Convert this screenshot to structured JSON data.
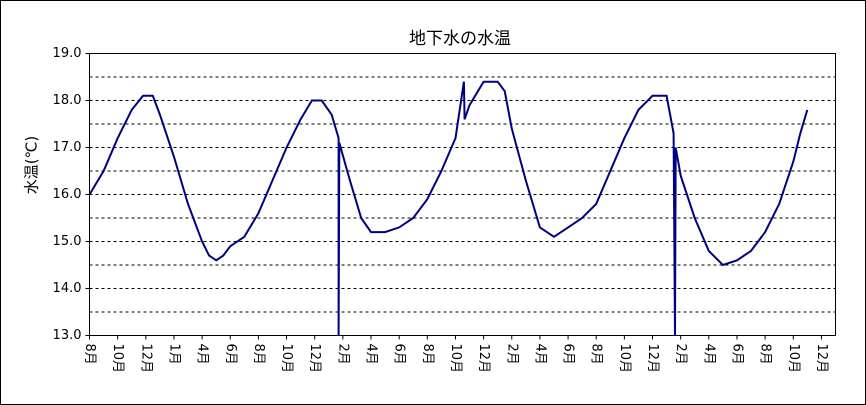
{
  "chart_data": {
    "type": "line",
    "title": "地下水の水温",
    "y_label": "水温(℃)",
    "x": [
      0,
      1,
      2,
      3,
      3.8,
      4.5,
      5,
      6,
      7,
      8,
      8.5,
      9,
      9.5,
      10,
      11,
      12,
      13,
      14,
      15,
      15.8,
      16.5,
      17.2,
      17.7,
      17.7,
      17.75,
      18.5,
      19.3,
      20,
      21,
      22,
      23,
      24,
      25,
      26,
      26.6,
      26.65,
      27,
      28,
      29,
      29.5,
      30,
      31,
      32,
      33,
      34,
      35,
      36,
      37,
      38,
      39,
      40,
      41,
      41.5,
      41.6,
      41.65,
      42,
      43,
      44,
      45,
      46,
      47,
      48,
      49,
      50,
      50.5,
      51
    ],
    "values": [
      16.0,
      16.5,
      17.2,
      17.8,
      18.1,
      18.1,
      17.7,
      16.8,
      15.8,
      15.0,
      14.7,
      14.6,
      14.7,
      14.9,
      15.1,
      15.6,
      16.3,
      17.0,
      17.6,
      18.0,
      18.0,
      17.7,
      17.2,
      13.0,
      17.1,
      16.3,
      15.5,
      15.2,
      15.2,
      15.3,
      15.5,
      15.9,
      16.5,
      17.2,
      18.4,
      17.6,
      17.9,
      18.4,
      18.4,
      18.2,
      17.4,
      16.3,
      15.3,
      15.1,
      15.3,
      15.5,
      15.8,
      16.5,
      17.2,
      17.8,
      18.1,
      18.1,
      17.3,
      13.0,
      17.0,
      16.4,
      15.5,
      14.8,
      14.5,
      14.6,
      14.8,
      15.2,
      15.8,
      16.7,
      17.3,
      17.8
    ],
    "color": "#000080",
    "xlim": [
      0,
      53
    ],
    "xticks": [
      {
        "value": 0,
        "label": "8月"
      },
      {
        "value": 2,
        "label": "10月"
      },
      {
        "value": 4,
        "label": "12月"
      },
      {
        "value": 6,
        "label": "1月"
      },
      {
        "value": 8,
        "label": "4月"
      },
      {
        "value": 10,
        "label": "6月"
      },
      {
        "value": 12,
        "label": "8月"
      },
      {
        "value": 14,
        "label": "10月"
      },
      {
        "value": 16,
        "label": "12月"
      },
      {
        "value": 18,
        "label": "2月"
      },
      {
        "value": 20,
        "label": "4月"
      },
      {
        "value": 22,
        "label": "6月"
      },
      {
        "value": 24,
        "label": "8月"
      },
      {
        "value": 26,
        "label": "10月"
      },
      {
        "value": 28,
        "label": "12月"
      },
      {
        "value": 30,
        "label": "2月"
      },
      {
        "value": 32,
        "label": "4月"
      },
      {
        "value": 34,
        "label": "6月"
      },
      {
        "value": 36,
        "label": "8月"
      },
      {
        "value": 38,
        "label": "10月"
      },
      {
        "value": 40,
        "label": "12月"
      },
      {
        "value": 42,
        "label": "2月"
      },
      {
        "value": 44,
        "label": "4月"
      },
      {
        "value": 46,
        "label": "6月"
      },
      {
        "value": 48,
        "label": "8月"
      },
      {
        "value": 50,
        "label": "10月"
      },
      {
        "value": 52,
        "label": "12月"
      }
    ],
    "ylim": [
      13,
      19
    ],
    "yticks": [
      {
        "value": 13,
        "label": "13.0"
      },
      {
        "value": 14,
        "label": "14.0"
      },
      {
        "value": 15,
        "label": "15.0"
      },
      {
        "value": 16,
        "label": "16.0"
      },
      {
        "value": 17,
        "label": "17.0"
      },
      {
        "value": 18,
        "label": "18.0"
      },
      {
        "value": 19,
        "label": "19.0"
      }
    ],
    "minor_grid": [
      13.5,
      14.5,
      15.5,
      16.5,
      17.5,
      18.5
    ],
    "grid": true
  }
}
